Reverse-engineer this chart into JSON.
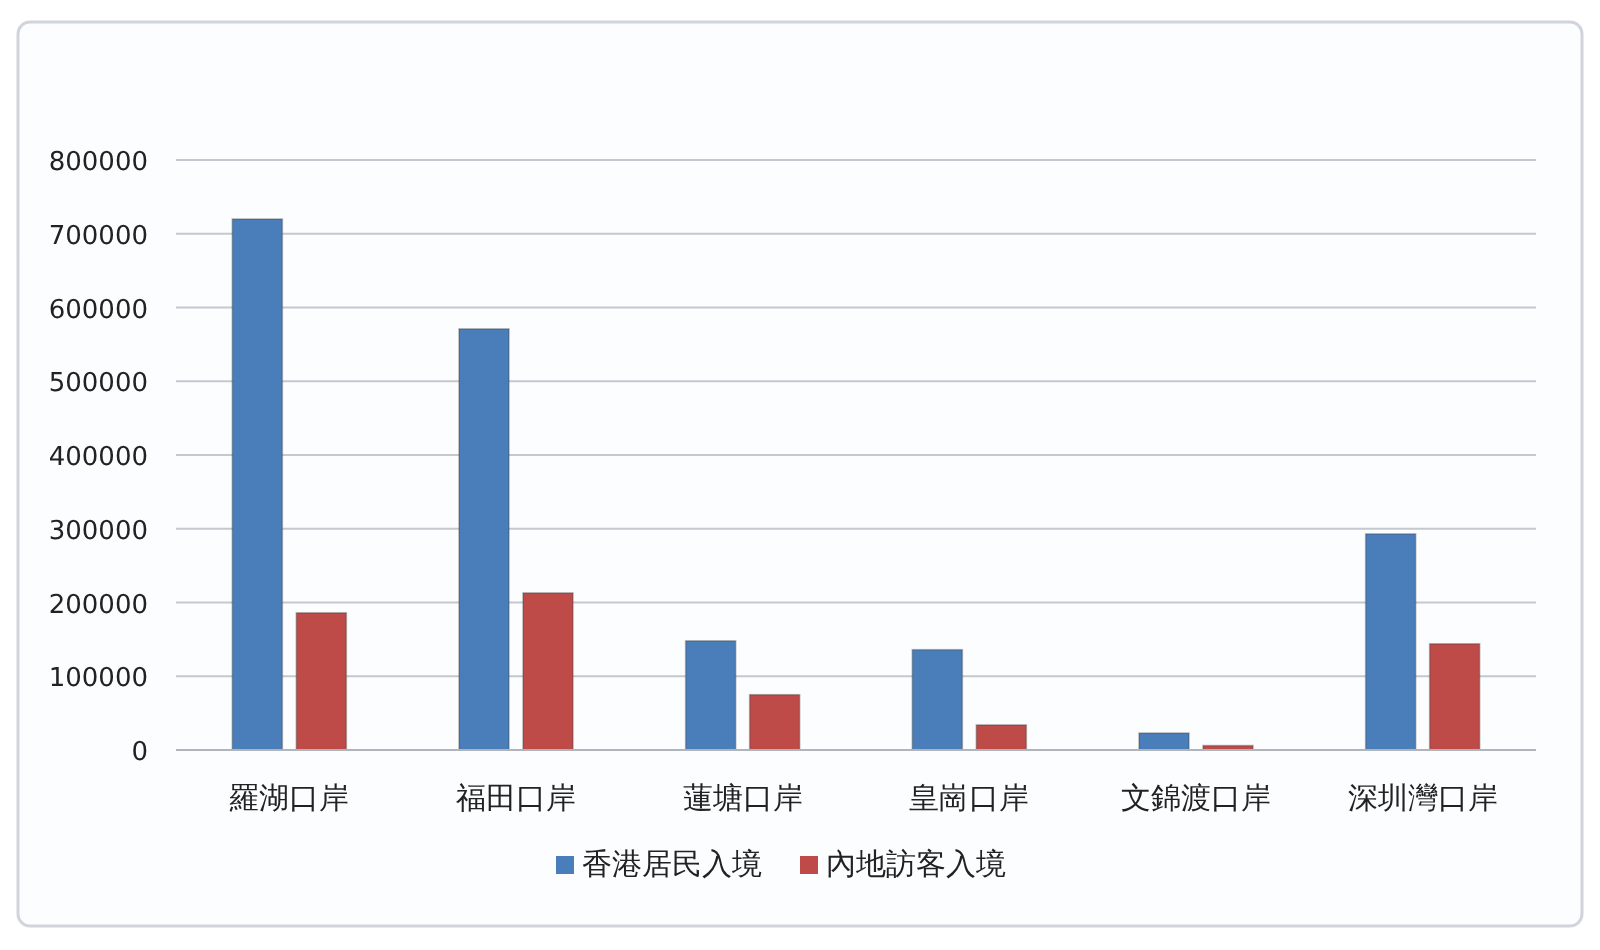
{
  "chart_data": {
    "type": "bar",
    "categories": [
      "羅湖口岸",
      "福田口岸",
      "蓮塘口岸",
      "皇崗口岸",
      "文錦渡口岸",
      "深圳灣口岸"
    ],
    "series": [
      {
        "name": "香港居民入境",
        "color": "#4a7ebb",
        "values": [
          720000,
          571000,
          148000,
          136000,
          23000,
          293000
        ]
      },
      {
        "name": "內地訪客入境",
        "color": "#be4b48",
        "values": [
          186000,
          213000,
          75000,
          34000,
          6000,
          144000
        ]
      }
    ],
    "ylim": [
      0,
      800000
    ],
    "yticks": [
      0,
      100000,
      200000,
      300000,
      400000,
      500000,
      600000,
      700000,
      800000
    ],
    "grid": "y",
    "legend": "bottom"
  }
}
